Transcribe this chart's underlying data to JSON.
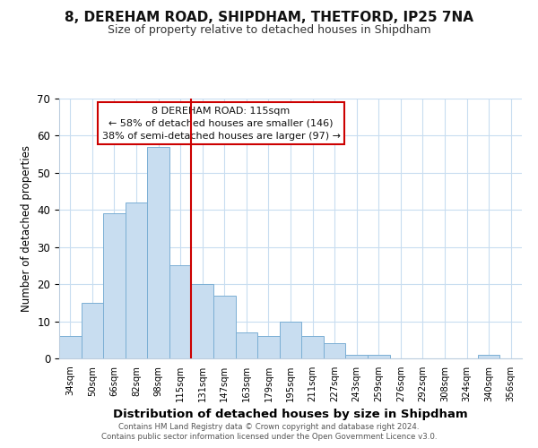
{
  "title": "8, DEREHAM ROAD, SHIPDHAM, THETFORD, IP25 7NA",
  "subtitle": "Size of property relative to detached houses in Shipdham",
  "xlabel": "Distribution of detached houses by size in Shipdham",
  "ylabel": "Number of detached properties",
  "bar_labels": [
    "34sqm",
    "50sqm",
    "66sqm",
    "82sqm",
    "98sqm",
    "115sqm",
    "131sqm",
    "147sqm",
    "163sqm",
    "179sqm",
    "195sqm",
    "211sqm",
    "227sqm",
    "243sqm",
    "259sqm",
    "276sqm",
    "292sqm",
    "308sqm",
    "324sqm",
    "340sqm",
    "356sqm"
  ],
  "bar_values": [
    6,
    15,
    39,
    42,
    57,
    25,
    20,
    17,
    7,
    6,
    10,
    6,
    4,
    1,
    1,
    0,
    0,
    0,
    0,
    1,
    0
  ],
  "bar_color": "#c8ddf0",
  "bar_edge_color": "#7bafd4",
  "highlight_line_color": "#cc0000",
  "highlight_line_index": 5,
  "ylim": [
    0,
    70
  ],
  "yticks": [
    0,
    10,
    20,
    30,
    40,
    50,
    60,
    70
  ],
  "annotation_title": "8 DEREHAM ROAD: 115sqm",
  "annotation_line1": "← 58% of detached houses are smaller (146)",
  "annotation_line2": "38% of semi-detached houses are larger (97) →",
  "annotation_box_color": "#ffffff",
  "annotation_box_edge_color": "#cc0000",
  "footer_line1": "Contains HM Land Registry data © Crown copyright and database right 2024.",
  "footer_line2": "Contains public sector information licensed under the Open Government Licence v3.0.",
  "background_color": "#ffffff",
  "grid_color": "#c8ddf0"
}
